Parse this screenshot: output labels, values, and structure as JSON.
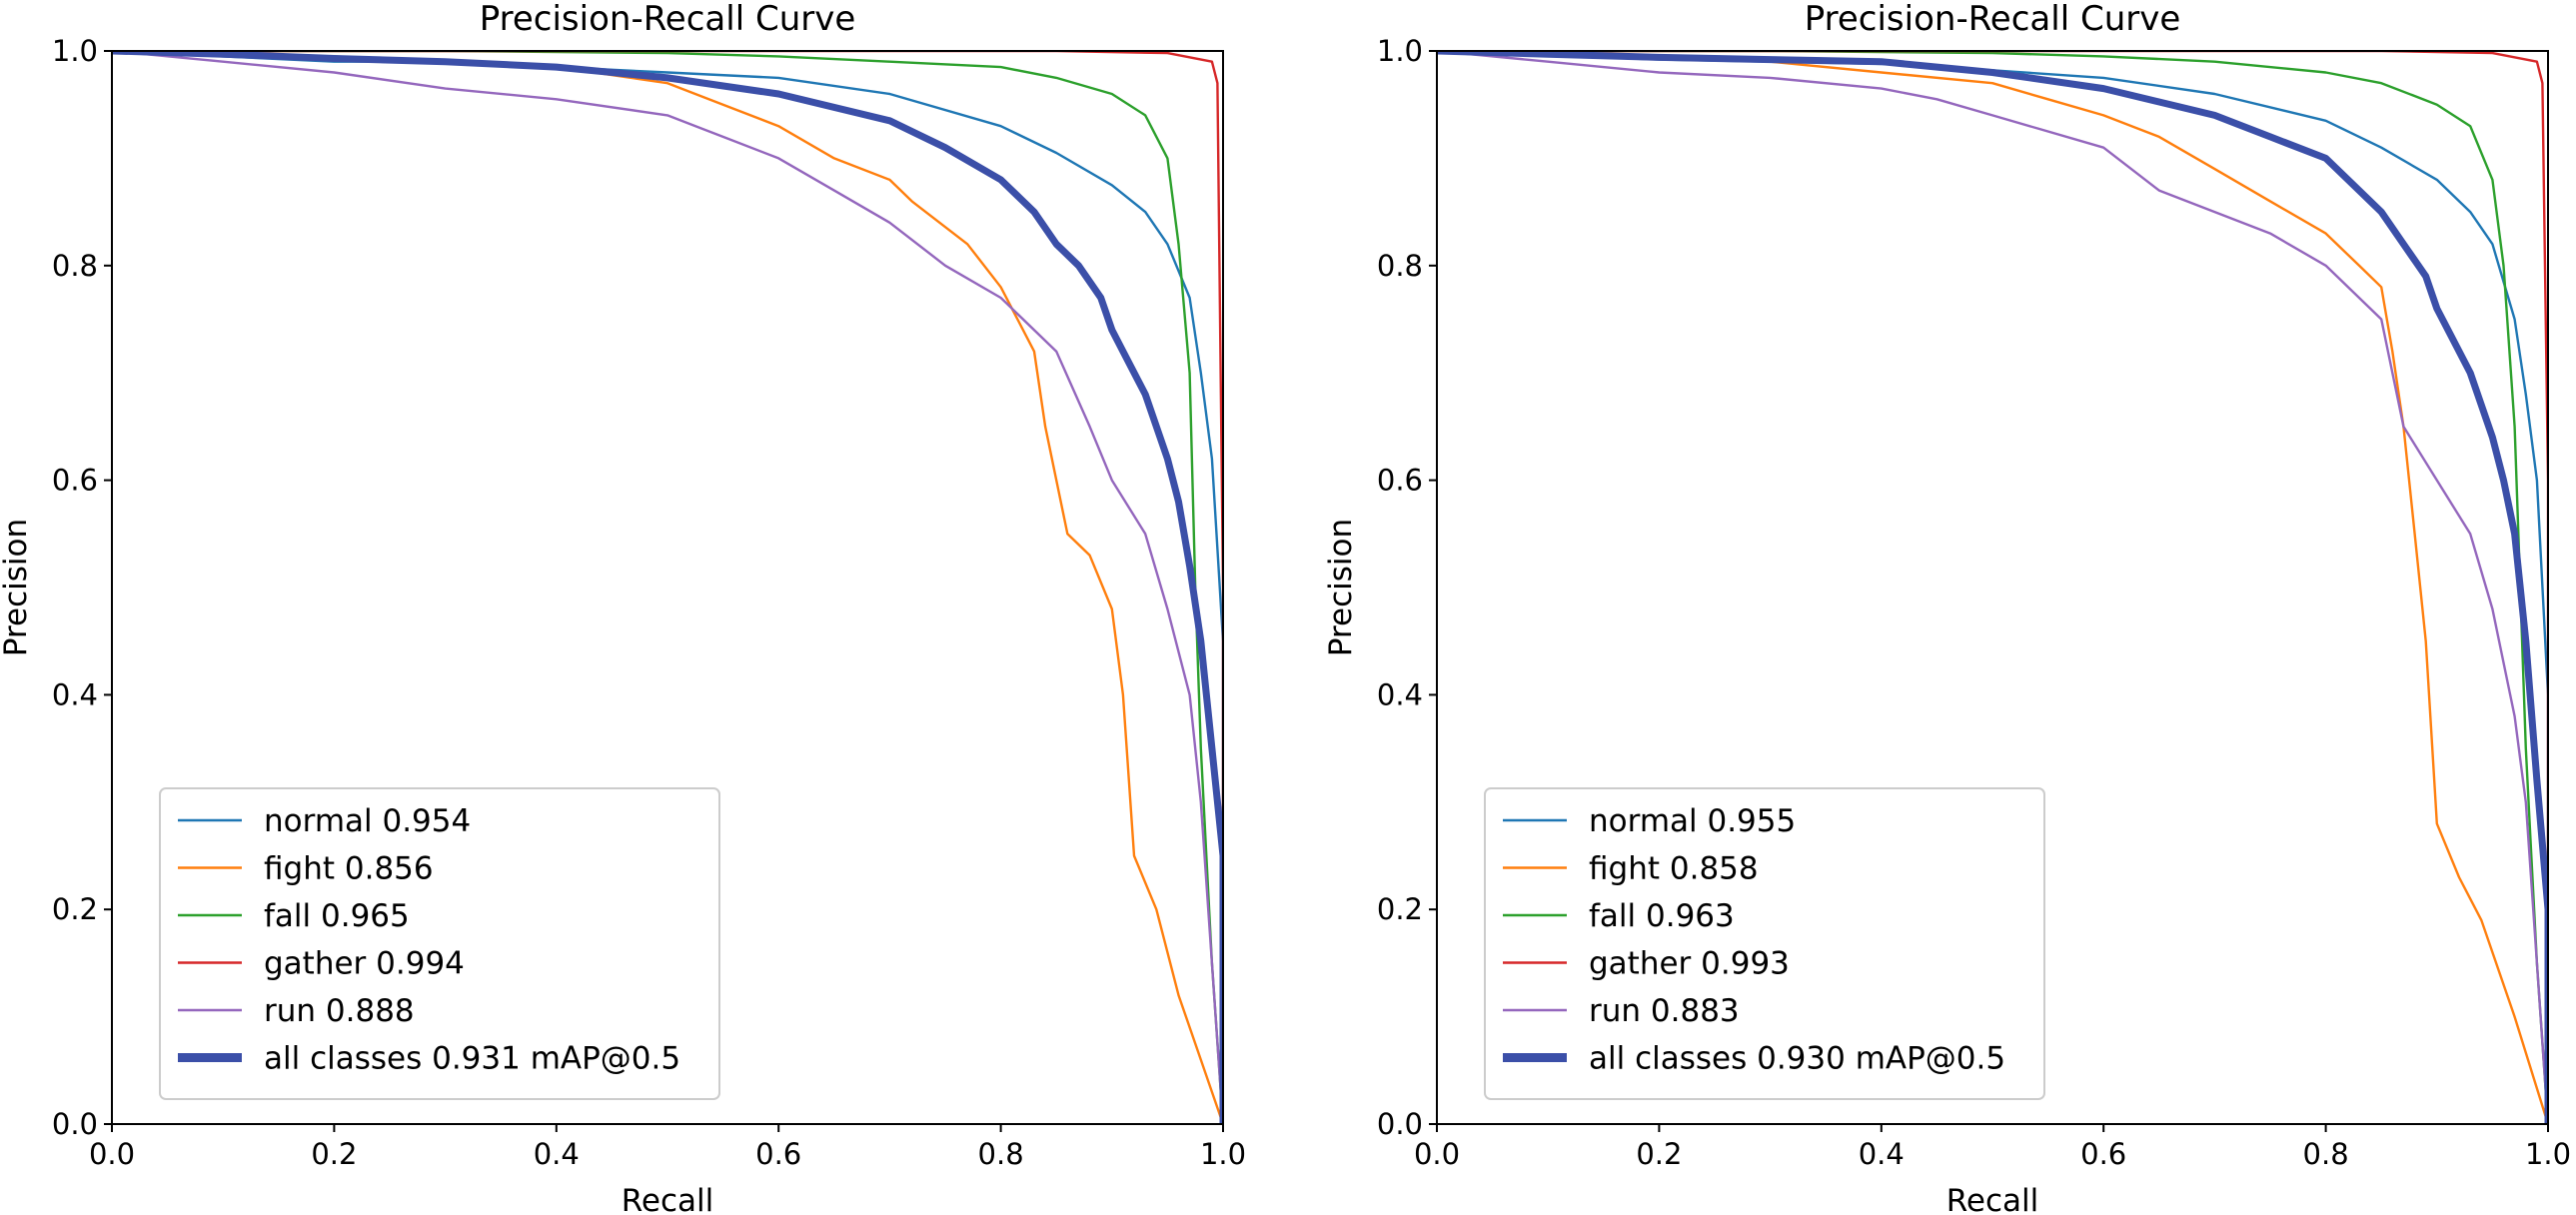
{
  "chart_data": [
    {
      "type": "line",
      "title": "Precision-Recall Curve",
      "xlabel": "Recall",
      "ylabel": "Precision",
      "xlim": [
        0,
        1
      ],
      "ylim": [
        0,
        1
      ],
      "xticks": [
        "0.0",
        "0.2",
        "0.4",
        "0.6",
        "0.8",
        "1.0"
      ],
      "yticks": [
        "0.0",
        "0.2",
        "0.4",
        "0.6",
        "0.8",
        "1.0"
      ],
      "legend_position": "lower-left",
      "series": [
        {
          "name": "normal 0.954",
          "color": "#1f77b4",
          "bold": false,
          "x": [
            0,
            0.1,
            0.2,
            0.3,
            0.4,
            0.5,
            0.6,
            0.7,
            0.8,
            0.85,
            0.9,
            0.93,
            0.95,
            0.97,
            0.98,
            0.99,
            1.0,
            1.0
          ],
          "y": [
            1.0,
            0.995,
            0.99,
            0.99,
            0.985,
            0.98,
            0.975,
            0.96,
            0.93,
            0.905,
            0.875,
            0.85,
            0.82,
            0.77,
            0.7,
            0.62,
            0.45,
            0.0
          ]
        },
        {
          "name": "fight 0.856",
          "color": "#ff7f0e",
          "bold": false,
          "x": [
            0,
            0.2,
            0.3,
            0.4,
            0.5,
            0.55,
            0.6,
            0.65,
            0.7,
            0.72,
            0.77,
            0.8,
            0.83,
            0.84,
            0.85,
            0.86,
            0.88,
            0.9,
            0.91,
            0.92,
            0.94,
            0.96,
            0.98,
            1.0
          ],
          "y": [
            1.0,
            0.995,
            0.99,
            0.985,
            0.97,
            0.95,
            0.93,
            0.9,
            0.88,
            0.86,
            0.82,
            0.78,
            0.72,
            0.65,
            0.6,
            0.55,
            0.53,
            0.48,
            0.4,
            0.25,
            0.2,
            0.12,
            0.06,
            0.0
          ]
        },
        {
          "name": "fall 0.965",
          "color": "#2ca02c",
          "bold": false,
          "x": [
            0,
            0.3,
            0.5,
            0.6,
            0.7,
            0.8,
            0.85,
            0.9,
            0.93,
            0.95,
            0.96,
            0.97,
            0.975,
            0.98,
            0.985,
            0.99,
            1.0
          ],
          "y": [
            1.0,
            1.0,
            0.998,
            0.995,
            0.99,
            0.985,
            0.975,
            0.96,
            0.94,
            0.9,
            0.82,
            0.7,
            0.5,
            0.35,
            0.25,
            0.15,
            0.0
          ]
        },
        {
          "name": "gather 0.994",
          "color": "#d62728",
          "bold": false,
          "x": [
            0,
            0.5,
            0.85,
            0.95,
            0.99,
            0.995,
            1.0,
            1.0
          ],
          "y": [
            1.0,
            1.0,
            1.0,
            0.998,
            0.99,
            0.97,
            0.5,
            0.0
          ]
        },
        {
          "name": "run 0.888",
          "color": "#9467bd",
          "bold": false,
          "x": [
            0,
            0.1,
            0.2,
            0.3,
            0.4,
            0.5,
            0.55,
            0.6,
            0.65,
            0.7,
            0.75,
            0.8,
            0.85,
            0.88,
            0.9,
            0.93,
            0.95,
            0.97,
            0.98,
            0.99,
            1.0
          ],
          "y": [
            1.0,
            0.99,
            0.98,
            0.965,
            0.955,
            0.94,
            0.92,
            0.9,
            0.87,
            0.84,
            0.8,
            0.77,
            0.72,
            0.65,
            0.6,
            0.55,
            0.48,
            0.4,
            0.3,
            0.15,
            0.0
          ]
        },
        {
          "name": "all classes 0.931 mAP@0.5",
          "color": "#3b4fa8",
          "bold": true,
          "x": [
            0,
            0.1,
            0.2,
            0.3,
            0.4,
            0.5,
            0.6,
            0.7,
            0.75,
            0.8,
            0.83,
            0.85,
            0.87,
            0.89,
            0.9,
            0.91,
            0.93,
            0.95,
            0.96,
            0.97,
            0.98,
            0.99,
            1.0,
            1.0
          ],
          "y": [
            1.0,
            0.997,
            0.993,
            0.99,
            0.985,
            0.975,
            0.96,
            0.935,
            0.91,
            0.88,
            0.85,
            0.82,
            0.8,
            0.77,
            0.74,
            0.72,
            0.68,
            0.62,
            0.58,
            0.52,
            0.45,
            0.35,
            0.25,
            0.0
          ]
        }
      ]
    },
    {
      "type": "line",
      "title": "Precision-Recall Curve",
      "xlabel": "Recall",
      "ylabel": "Precision",
      "xlim": [
        0,
        1
      ],
      "ylim": [
        0,
        1
      ],
      "xticks": [
        "0.0",
        "0.2",
        "0.4",
        "0.6",
        "0.8",
        "1.0"
      ],
      "yticks": [
        "0.0",
        "0.2",
        "0.4",
        "0.6",
        "0.8",
        "1.0"
      ],
      "legend_position": "lower-left",
      "series": [
        {
          "name": "normal 0.955",
          "color": "#1f77b4",
          "bold": false,
          "x": [
            0,
            0.1,
            0.2,
            0.3,
            0.4,
            0.5,
            0.6,
            0.7,
            0.8,
            0.85,
            0.9,
            0.93,
            0.95,
            0.97,
            0.98,
            0.99,
            1.0,
            1.0
          ],
          "y": [
            1.0,
            0.996,
            0.992,
            0.99,
            0.988,
            0.982,
            0.975,
            0.96,
            0.935,
            0.91,
            0.88,
            0.85,
            0.82,
            0.75,
            0.68,
            0.6,
            0.4,
            0.0
          ]
        },
        {
          "name": "fight 0.858",
          "color": "#ff7f0e",
          "bold": false,
          "x": [
            0,
            0.2,
            0.3,
            0.4,
            0.5,
            0.55,
            0.6,
            0.65,
            0.7,
            0.75,
            0.8,
            0.83,
            0.85,
            0.86,
            0.87,
            0.88,
            0.89,
            0.9,
            0.92,
            0.94,
            0.97,
            1.0
          ],
          "y": [
            1.0,
            0.995,
            0.99,
            0.98,
            0.97,
            0.955,
            0.94,
            0.92,
            0.89,
            0.86,
            0.83,
            0.8,
            0.78,
            0.72,
            0.65,
            0.55,
            0.45,
            0.28,
            0.23,
            0.19,
            0.1,
            0.0
          ]
        },
        {
          "name": "fall 0.963",
          "color": "#2ca02c",
          "bold": false,
          "x": [
            0,
            0.3,
            0.5,
            0.6,
            0.7,
            0.8,
            0.85,
            0.9,
            0.93,
            0.95,
            0.96,
            0.97,
            0.975,
            0.98,
            0.985,
            0.99,
            1.0
          ],
          "y": [
            1.0,
            1.0,
            0.998,
            0.995,
            0.99,
            0.98,
            0.97,
            0.95,
            0.93,
            0.88,
            0.8,
            0.65,
            0.5,
            0.35,
            0.25,
            0.15,
            0.0
          ]
        },
        {
          "name": "gather 0.993",
          "color": "#d62728",
          "bold": false,
          "x": [
            0,
            0.5,
            0.85,
            0.95,
            0.99,
            0.995,
            1.0,
            1.0
          ],
          "y": [
            1.0,
            1.0,
            1.0,
            0.998,
            0.99,
            0.97,
            0.6,
            0.0
          ]
        },
        {
          "name": "run 0.883",
          "color": "#9467bd",
          "bold": false,
          "x": [
            0,
            0.1,
            0.2,
            0.3,
            0.4,
            0.45,
            0.5,
            0.6,
            0.65,
            0.7,
            0.75,
            0.8,
            0.85,
            0.87,
            0.9,
            0.93,
            0.95,
            0.97,
            0.98,
            0.99,
            1.0
          ],
          "y": [
            1.0,
            0.99,
            0.98,
            0.975,
            0.965,
            0.955,
            0.94,
            0.91,
            0.87,
            0.85,
            0.83,
            0.8,
            0.75,
            0.65,
            0.6,
            0.55,
            0.48,
            0.38,
            0.3,
            0.15,
            0.0
          ]
        },
        {
          "name": "all classes 0.930 mAP@0.5",
          "color": "#3b4fa8",
          "bold": true,
          "x": [
            0,
            0.1,
            0.2,
            0.3,
            0.4,
            0.5,
            0.6,
            0.7,
            0.75,
            0.8,
            0.83,
            0.85,
            0.87,
            0.89,
            0.9,
            0.91,
            0.93,
            0.95,
            0.96,
            0.97,
            0.98,
            0.99,
            1.0,
            1.0
          ],
          "y": [
            1.0,
            0.997,
            0.994,
            0.992,
            0.99,
            0.98,
            0.965,
            0.94,
            0.92,
            0.9,
            0.87,
            0.85,
            0.82,
            0.79,
            0.76,
            0.74,
            0.7,
            0.64,
            0.6,
            0.55,
            0.45,
            0.32,
            0.2,
            0.0
          ]
        }
      ]
    }
  ]
}
